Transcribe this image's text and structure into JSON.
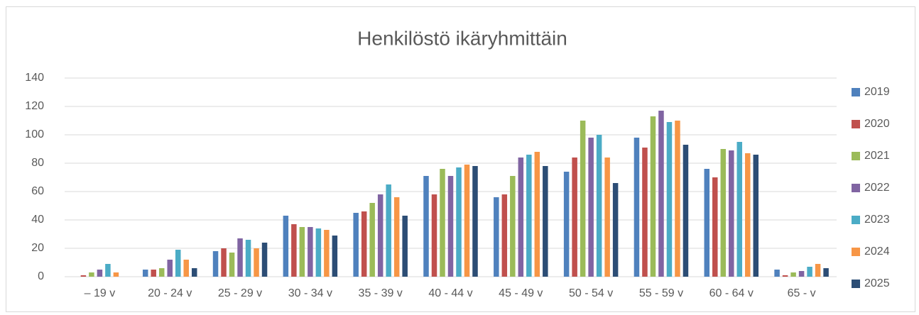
{
  "chart_data": {
    "type": "bar",
    "title": "Henkilöstö ikäryhmittäin",
    "categories": [
      "– 19 v",
      "20 - 24 v",
      "25 - 29 v",
      "30 - 34 v",
      "35 - 39 v",
      "40 - 44 v",
      "45 - 49 v",
      "50 - 54 v",
      "55 - 59 v",
      "60 - 64 v",
      "65 - v"
    ],
    "series": [
      {
        "name": "2019",
        "color": "#4f81bd",
        "values": [
          0,
          5,
          18,
          43,
          45,
          71,
          56,
          74,
          98,
          76,
          5
        ]
      },
      {
        "name": "2020",
        "color": "#c0504d",
        "values": [
          1,
          5,
          20,
          37,
          46,
          58,
          58,
          84,
          91,
          70,
          1
        ]
      },
      {
        "name": "2021",
        "color": "#9bbb59",
        "values": [
          3,
          6,
          17,
          35,
          52,
          76,
          71,
          110,
          113,
          90,
          3
        ]
      },
      {
        "name": "2022",
        "color": "#8064a2",
        "values": [
          5,
          12,
          27,
          35,
          58,
          71,
          84,
          98,
          117,
          89,
          4
        ]
      },
      {
        "name": "2023",
        "color": "#4bacc6",
        "values": [
          9,
          19,
          26,
          34,
          65,
          77,
          86,
          100,
          109,
          95,
          7
        ]
      },
      {
        "name": "2024",
        "color": "#f79646",
        "values": [
          3,
          12,
          20,
          33,
          56,
          79,
          88,
          84,
          110,
          87,
          9
        ]
      },
      {
        "name": "2025",
        "color": "#2c4d75",
        "values": [
          0,
          6,
          24,
          29,
          43,
          78,
          78,
          66,
          93,
          86,
          6
        ]
      }
    ],
    "ylim": [
      0,
      140
    ],
    "yticks": [
      0,
      20,
      40,
      60,
      80,
      100,
      120,
      140
    ],
    "grid": true,
    "legend": "right"
  }
}
